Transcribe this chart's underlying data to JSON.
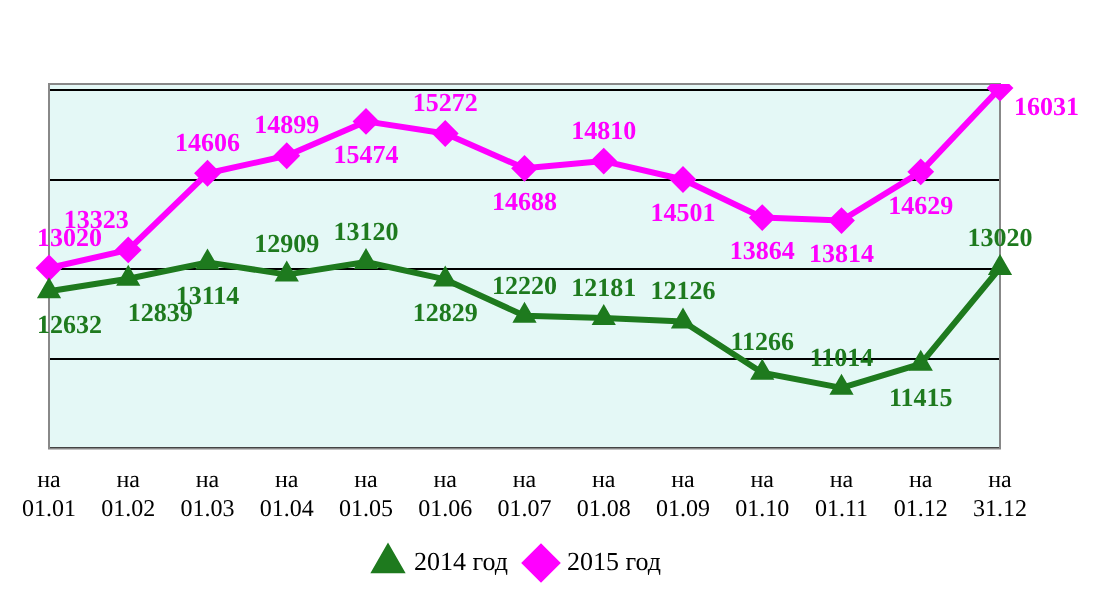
{
  "chart_data": {
    "type": "line",
    "categories": [
      "на 01.01",
      "на 01.02",
      "на 01.03",
      "на 01.04",
      "на 01.05",
      "на 01.06",
      "на 01.07",
      "на 01.08",
      "на 01.09",
      "на 01.10",
      "на 01.11",
      "на 01.12",
      "на 31.12"
    ],
    "series": [
      {
        "name": "2014 год",
        "color": "#1e7a1e",
        "marker": "triangle",
        "values": [
          12632,
          12839,
          13114,
          12909,
          13120,
          12829,
          12220,
          12181,
          12126,
          11266,
          11014,
          11415,
          13020
        ]
      },
      {
        "name": "2015 год",
        "color": "#ff00ff",
        "marker": "diamond",
        "values": [
          13020,
          13323,
          14606,
          14899,
          15474,
          15272,
          14688,
          14810,
          14501,
          13864,
          13814,
          14629,
          16031
        ]
      }
    ],
    "ylim": [
      10000,
      16100
    ],
    "yticks": [
      {
        "value": 10000,
        "label": null
      },
      {
        "value": 11500,
        "label": null
      },
      {
        "value": 13000,
        "label": null
      },
      {
        "value": 14500,
        "label": null
      },
      {
        "value": 16000,
        "label": null
      }
    ],
    "grid": "y",
    "legend": "bottom",
    "data_labels": true,
    "tick_labels": "x",
    "line_style": "solid"
  }
}
